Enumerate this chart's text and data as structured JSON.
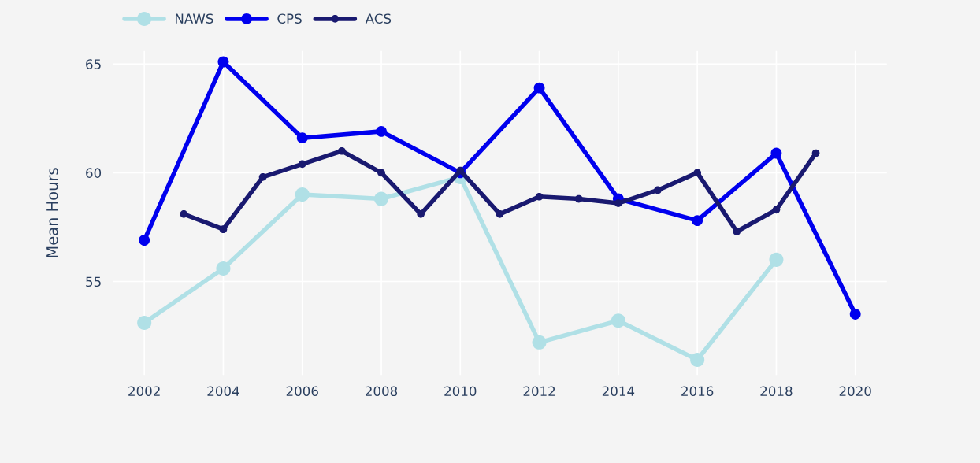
{
  "chart_data": {
    "type": "line",
    "ylabel": "Mean Hours",
    "xlim": [
      2001.2,
      2020.8
    ],
    "ylim": [
      50.7,
      65.6
    ],
    "xticks": [
      2002,
      2004,
      2006,
      2008,
      2010,
      2012,
      2014,
      2016,
      2018,
      2020
    ],
    "yticks": [
      55,
      60,
      65
    ],
    "grid": true,
    "legend": "top left",
    "marker": "circle",
    "line_style": "solid",
    "series": [
      {
        "name": "NAWS",
        "color": "#b0e0e6",
        "x": [
          2002,
          2004,
          2006,
          2008,
          2010,
          2012,
          2014,
          2016,
          2018
        ],
        "values": [
          53.1,
          55.6,
          59.0,
          58.8,
          59.8,
          52.2,
          53.2,
          51.4,
          56.0
        ]
      },
      {
        "name": "CPS",
        "color": "#0000ee",
        "x": [
          2002,
          2004,
          2006,
          2008,
          2010,
          2012,
          2014,
          2016,
          2018,
          2020
        ],
        "values": [
          56.9,
          65.1,
          61.6,
          61.9,
          60.0,
          63.9,
          58.8,
          57.8,
          60.9,
          53.5
        ]
      },
      {
        "name": "ACS",
        "color": "#191970",
        "x": [
          2003,
          2004,
          2005,
          2006,
          2007,
          2008,
          2009,
          2010,
          2011,
          2012,
          2013,
          2014,
          2015,
          2016,
          2017,
          2018,
          2019
        ],
        "values": [
          58.1,
          57.4,
          59.8,
          60.4,
          61.0,
          60.0,
          58.1,
          60.1,
          58.1,
          58.9,
          58.8,
          58.6,
          59.2,
          60.0,
          57.3,
          58.3,
          60.9
        ]
      }
    ]
  }
}
